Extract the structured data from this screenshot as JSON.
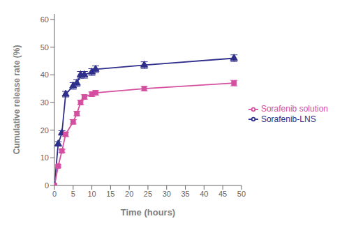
{
  "chart_data": {
    "type": "line",
    "xlabel": "Time (hours)",
    "ylabel": "Cumulative release rate (%)",
    "x": [
      0,
      1,
      2,
      3,
      5,
      6,
      7,
      8,
      10,
      11,
      24,
      48
    ],
    "series": [
      {
        "name": "Sorafenib-LNS",
        "color": "#2e2e8b",
        "marker": "triangle",
        "values": [
          0,
          15,
          19,
          33,
          36,
          37,
          40,
          40,
          41,
          42,
          43.5,
          46
        ],
        "yerr": [
          0,
          0.8,
          0.8,
          1.0,
          1.2,
          1.2,
          1.2,
          1.2,
          1.2,
          1.2,
          1.2,
          1.2
        ]
      },
      {
        "name": "Sorafenib solution",
        "color": "#d44fa0",
        "marker": "square",
        "values": [
          0,
          7,
          12.5,
          18.5,
          23,
          26,
          30,
          32,
          33,
          33.5,
          35,
          37
        ],
        "yerr": [
          0,
          0.4,
          0.6,
          0.8,
          0.8,
          0.8,
          0.8,
          0.8,
          0.8,
          0.8,
          0.8,
          1.0
        ]
      }
    ],
    "xlim": [
      0,
      50
    ],
    "ylim": [
      0,
      62
    ],
    "xticks": [
      0,
      5,
      10,
      15,
      20,
      25,
      30,
      35,
      40,
      45,
      50
    ],
    "yticks": [
      0,
      10,
      20,
      30,
      40,
      50,
      60
    ],
    "legend": "right",
    "grid": false
  }
}
